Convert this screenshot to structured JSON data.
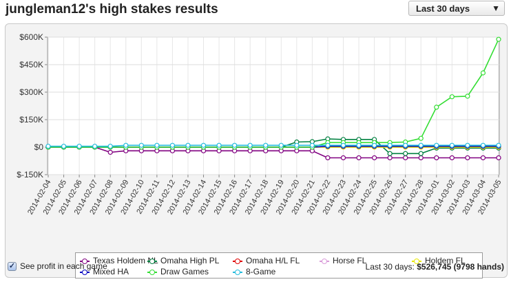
{
  "header": {
    "title": "jungleman12's high stakes results",
    "range_select": {
      "value": "Last 30 days",
      "arrow": "▼"
    }
  },
  "footer": {
    "checkbox_label": "See profit in each game",
    "checkbox_checked": true,
    "summary_prefix": "Last 30 days: ",
    "summary_amount": "$526,745",
    "summary_hands": "(9798 hands)"
  },
  "chart_data": {
    "type": "line",
    "title": "",
    "xlabel": "",
    "ylabel": "",
    "ylim": [
      -150000,
      600000
    ],
    "y_ticks": [
      -150000,
      0,
      150000,
      300000,
      450000,
      600000
    ],
    "y_tick_labels": [
      "$-150K",
      "$0",
      "$150K",
      "$300K",
      "$450K",
      "$600K"
    ],
    "grid": true,
    "legend_position": "bottom",
    "x": [
      "2014-02-04",
      "2014-02-05",
      "2014-02-06",
      "2014-02-07",
      "2014-02-08",
      "2014-02-09",
      "2014-02-10",
      "2014-02-11",
      "2014-02-12",
      "2014-02-13",
      "2014-02-14",
      "2014-02-15",
      "2014-02-16",
      "2014-02-17",
      "2014-02-18",
      "2014-02-19",
      "2014-02-20",
      "2014-02-21",
      "2014-02-22",
      "2014-02-23",
      "2014-02-24",
      "2014-02-25",
      "2014-02-26",
      "2014-02-27",
      "2014-02-28",
      "2014-03-01",
      "2014-03-02",
      "2014-03-03",
      "2014-03-04",
      "2014-03-05"
    ],
    "series": [
      {
        "name": "Texas Holdem NL",
        "color": "#800080",
        "legend_row": 0,
        "legend_col": 0,
        "values": [
          0,
          0,
          0,
          0,
          -28000,
          -20000,
          -20000,
          -20000,
          -20000,
          -20000,
          -20000,
          -20000,
          -20000,
          -20000,
          -20000,
          -20000,
          -20000,
          -20000,
          -58000,
          -58000,
          -58000,
          -58000,
          -58000,
          -58000,
          -58000,
          -58000,
          -58000,
          -58000,
          -58000,
          -58000
        ]
      },
      {
        "name": "Omaha High PL",
        "color": "#008040",
        "legend_row": 0,
        "legend_col": 1,
        "values": [
          0,
          0,
          0,
          0,
          0,
          0,
          0,
          0,
          0,
          0,
          0,
          0,
          0,
          0,
          0,
          0,
          28000,
          30000,
          45000,
          42000,
          42000,
          42000,
          -35000,
          -35000,
          -35000,
          -5000,
          -5000,
          -5000,
          -5000,
          -5000
        ]
      },
      {
        "name": "Omaha H/L FL",
        "color": "#e00000",
        "legend_row": 0,
        "legend_col": 2,
        "values": [
          0,
          0,
          0,
          0,
          0,
          0,
          0,
          0,
          0,
          0,
          0,
          0,
          0,
          0,
          0,
          0,
          0,
          0,
          0,
          0,
          0,
          0,
          0,
          0,
          0,
          0,
          0,
          0,
          0,
          0
        ]
      },
      {
        "name": "Horse FL",
        "color": "#d99bd9",
        "legend_row": 0,
        "legend_col": 3,
        "values": [
          0,
          0,
          0,
          0,
          0,
          0,
          0,
          0,
          0,
          0,
          0,
          0,
          0,
          0,
          0,
          0,
          0,
          0,
          0,
          0,
          0,
          0,
          0,
          0,
          0,
          0,
          0,
          0,
          0,
          0
        ]
      },
      {
        "name": "Holdem FL",
        "color": "#e8e800",
        "legend_row": 0,
        "legend_col": 4,
        "values": [
          0,
          0,
          0,
          0,
          0,
          0,
          0,
          0,
          0,
          0,
          0,
          0,
          0,
          0,
          0,
          0,
          0,
          0,
          0,
          0,
          0,
          0,
          0,
          0,
          0,
          0,
          0,
          0,
          0,
          0
        ]
      },
      {
        "name": "Mixed HA",
        "color": "#0000c0",
        "legend_row": 1,
        "legend_col": 0,
        "values": [
          0,
          0,
          0,
          0,
          0,
          0,
          0,
          0,
          0,
          0,
          0,
          0,
          0,
          0,
          0,
          0,
          0,
          0,
          5000,
          5000,
          5000,
          5000,
          5000,
          5000,
          5000,
          5000,
          5000,
          5000,
          5000,
          5000
        ]
      },
      {
        "name": "Draw Games",
        "color": "#33dd33",
        "legend_row": 1,
        "legend_col": 1,
        "values": [
          0,
          0,
          0,
          0,
          0,
          0,
          0,
          0,
          0,
          0,
          0,
          0,
          0,
          0,
          0,
          0,
          0,
          0,
          25000,
          25000,
          25000,
          25000,
          25000,
          28000,
          48000,
          218000,
          275000,
          278000,
          405000,
          588000
        ]
      },
      {
        "name": "8-Game",
        "color": "#22bbdd",
        "legend_row": 1,
        "legend_col": 2,
        "values": [
          5000,
          5000,
          5000,
          5000,
          5000,
          10000,
          10000,
          10000,
          10000,
          10000,
          10000,
          10000,
          10000,
          10000,
          10000,
          10000,
          10000,
          10000,
          10000,
          10000,
          10000,
          10000,
          10000,
          10000,
          10000,
          10000,
          10000,
          10000,
          10000,
          10000
        ]
      }
    ]
  }
}
